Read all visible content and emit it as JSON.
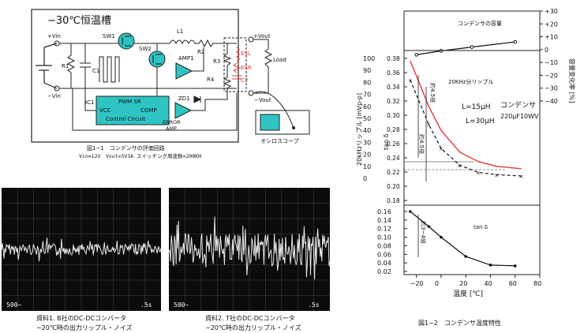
{
  "circuit": {
    "title": "−30℃恒温槽",
    "labels": {
      "vin_plus": "+Vin",
      "vin_minus": "−Vin",
      "r1": "R1",
      "c1": "C1",
      "sw1": "SW1",
      "sw2": "SW2",
      "l1": "L1",
      "r2": "R2",
      "r3": "R3",
      "r4": "R4",
      "amp1": "AMP1",
      "zd1": "ZD1",
      "ic1": "IC1",
      "pwm_sr": "PWM  SR",
      "vcc": "VCC",
      "comp": "COMP",
      "control": "Control Circuit",
      "error_amp_1": "ERROR",
      "error_amp_2": "AMP",
      "esl": "ESL",
      "esr": "ESR",
      "c2": "C2",
      "vout_plus": "+Vout",
      "vout_minus": "−Vout",
      "load": "Load",
      "scope": "オシロスコープ"
    },
    "caption_line1": "図1−1　コンデンサの評価回路",
    "caption_line2": "Vin=12V　Vout=5V3A スイッチング周波数=200KH",
    "colors": {
      "accent": "#2ec4c4",
      "esr": "#e53935"
    }
  },
  "scopes": [
    {
      "left_label": "500~",
      "right_label": ".5s",
      "caption_line1": "資料1. B社のDC-DCコンバータ",
      "caption_line2": "−20℃時の出力リップル・ノイズ"
    },
    {
      "left_label": "500~",
      "right_label": ".5s",
      "caption_line1": "資料2. T社のDC-DCコンバータ",
      "caption_line2": "−20℃時の出力リップル・ノイズ"
    }
  ],
  "chart_data": {
    "type": "line",
    "caption": "図1−2　コンデンサ温度特性",
    "xlabel": "温度 [℃]",
    "x_ticks": [
      "−20",
      "0",
      "20",
      "40",
      "60",
      "80"
    ],
    "xlim": [
      -30,
      80
    ],
    "capacitance_panel": {
      "title": "コンデンサの容量",
      "right_axis_label": "容量変化率 [%]",
      "right_ticks": [
        "+30",
        "+20",
        "+10",
        "0",
        "−10",
        "−20",
        "−30",
        "−40"
      ],
      "x": [
        -20,
        0,
        25,
        60
      ],
      "values": [
        -4,
        -1,
        2,
        6
      ]
    },
    "ripple_panel": {
      "title": "20KHz分リップル",
      "left_axis_label": "20kHzリップル [mVp-p]",
      "left_ticks": [
        "100",
        "90",
        "80",
        "70",
        "60",
        "50",
        "40",
        "30",
        "20",
        "10",
        "0"
      ],
      "tan_axis_label": "tan δ",
      "tan_ticks": [
        "0.38",
        "0.36",
        "0.34",
        "0.32",
        "0.30",
        "0.28",
        "0.26",
        "0.24",
        "0.22",
        "0.20",
        "0.18"
      ],
      "series": [
        {
          "name": "L=15μH",
          "x": [
            -25,
            -10,
            0,
            15,
            30,
            45,
            65
          ],
          "values": [
            98,
            60,
            40,
            22,
            14,
            10,
            8
          ],
          "color": "#e53935"
        },
        {
          "name": "L=30μH",
          "x": [
            -25,
            -10,
            0,
            15,
            30,
            45,
            65
          ],
          "values": [
            82,
            45,
            25,
            11,
            5,
            3,
            2
          ],
          "color": "#111111"
        }
      ],
      "annotations": [
        "約4.5倍",
        "約4.5倍"
      ],
      "capacitor_label_1": "コンデンサ",
      "capacitor_label_2": "220μF10WV"
    },
    "tan_panel": {
      "title": "tan δ",
      "left_ticks": [
        "0.16",
        "0.14",
        "0.12",
        "0.10",
        "0.08",
        "0.06",
        "0.04",
        "0.02"
      ],
      "x": [
        -25,
        -10,
        0,
        20,
        40,
        60
      ],
      "values": [
        0.16,
        0.125,
        0.1,
        0.055,
        0.035,
        0.033
      ],
      "annotation": "約3~4倍"
    }
  }
}
